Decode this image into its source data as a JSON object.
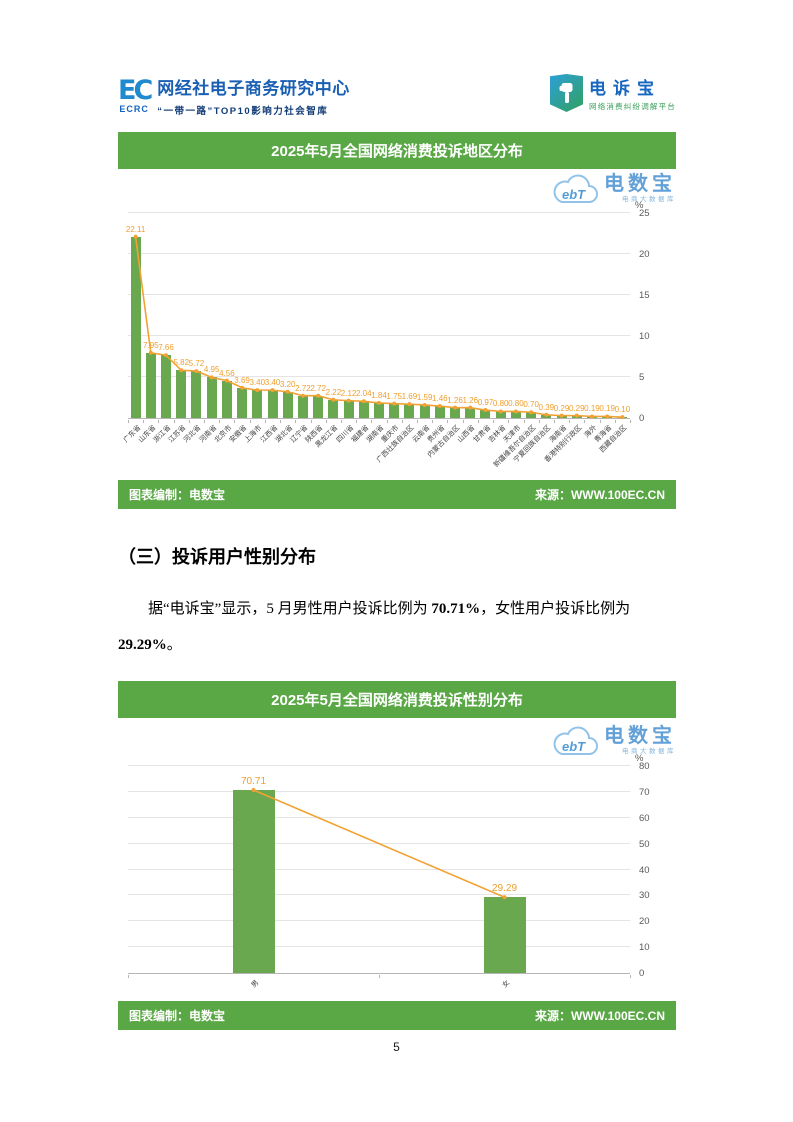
{
  "header": {
    "left_logo": {
      "mark": "EC",
      "mark_sub": "ECRC",
      "title": "网经社电子商务研究中心",
      "subtitle": "“一带一路”TOP10影响力社会智库"
    },
    "right_logo": {
      "title": "电诉宝",
      "subtitle": "网络消费纠纷调解平台"
    }
  },
  "watermark": {
    "cloud_text": "ebT",
    "name": "电数宝",
    "sub": "电商大数据库"
  },
  "footer": {
    "left": "图表编制：电数宝",
    "right": "来源：WWW.100EC.CN"
  },
  "section": {
    "heading": "（三）投诉用户性别分布",
    "para_prefix": "据“电诉宝”显示，5 月男性用户投诉比例为 ",
    "para_bold1": "70.71%",
    "para_mid": "，女性用户投诉比例为",
    "para_bold2": "29.29%",
    "para_suffix": "。"
  },
  "page": {
    "number": "5"
  },
  "colors": {
    "banner_green": "#5aa746",
    "brand_blue": "#1a5fb4",
    "watermark_blue": "#5b9bd5"
  },
  "chart_data": [
    {
      "type": "bar",
      "title": "2025年5月全国网络消费投诉地区分布",
      "categories": [
        "广东省",
        "山东省",
        "浙江省",
        "江苏省",
        "河北省",
        "河南省",
        "北京市",
        "安徽省",
        "上海市",
        "江西省",
        "湖北省",
        "辽宁省",
        "陕西省",
        "黑龙江省",
        "四川省",
        "福建省",
        "湖南省",
        "重庆市",
        "广西壮族自治区",
        "云南省",
        "贵州省",
        "内蒙古自治区",
        "山西省",
        "甘肃省",
        "吉林省",
        "天津市",
        "新疆维吾尔自治区",
        "宁夏回族自治区",
        "海南省",
        "香港特别行政区",
        "海外",
        "青海省",
        "西藏自治区"
      ],
      "values": [
        22.11,
        7.95,
        7.66,
        5.82,
        5.72,
        4.95,
        4.56,
        3.69,
        3.4,
        3.4,
        3.2,
        2.72,
        2.72,
        2.22,
        2.12,
        2.04,
        1.84,
        1.75,
        1.69,
        1.59,
        1.46,
        1.26,
        1.26,
        0.97,
        0.8,
        0.8,
        0.7,
        0.39,
        0.29,
        0.29,
        0.19,
        0.19,
        0.1
      ],
      "xlabel": "",
      "ylabel": "%",
      "ylim": [
        0,
        25
      ],
      "yticks": [
        0,
        5,
        10,
        15,
        20,
        25
      ],
      "grid": true,
      "overlay_line": true,
      "legend": "none",
      "bar_color": "#69a84e",
      "line_color": "#f2a234",
      "label_color": "#f09f2e"
    },
    {
      "type": "bar",
      "title": "2025年5月全国网络消费投诉性别分布",
      "categories": [
        "男",
        "女"
      ],
      "values": [
        70.71,
        29.29
      ],
      "xlabel": "",
      "ylabel": "%",
      "ylim": [
        0,
        80
      ],
      "yticks": [
        0,
        10,
        20,
        30,
        40,
        50,
        60,
        70,
        80
      ],
      "grid": true,
      "overlay_line": true,
      "legend": "none",
      "bar_color": "#69a84e",
      "line_color": "#f2a234",
      "label_color": "#f09f2e"
    }
  ]
}
